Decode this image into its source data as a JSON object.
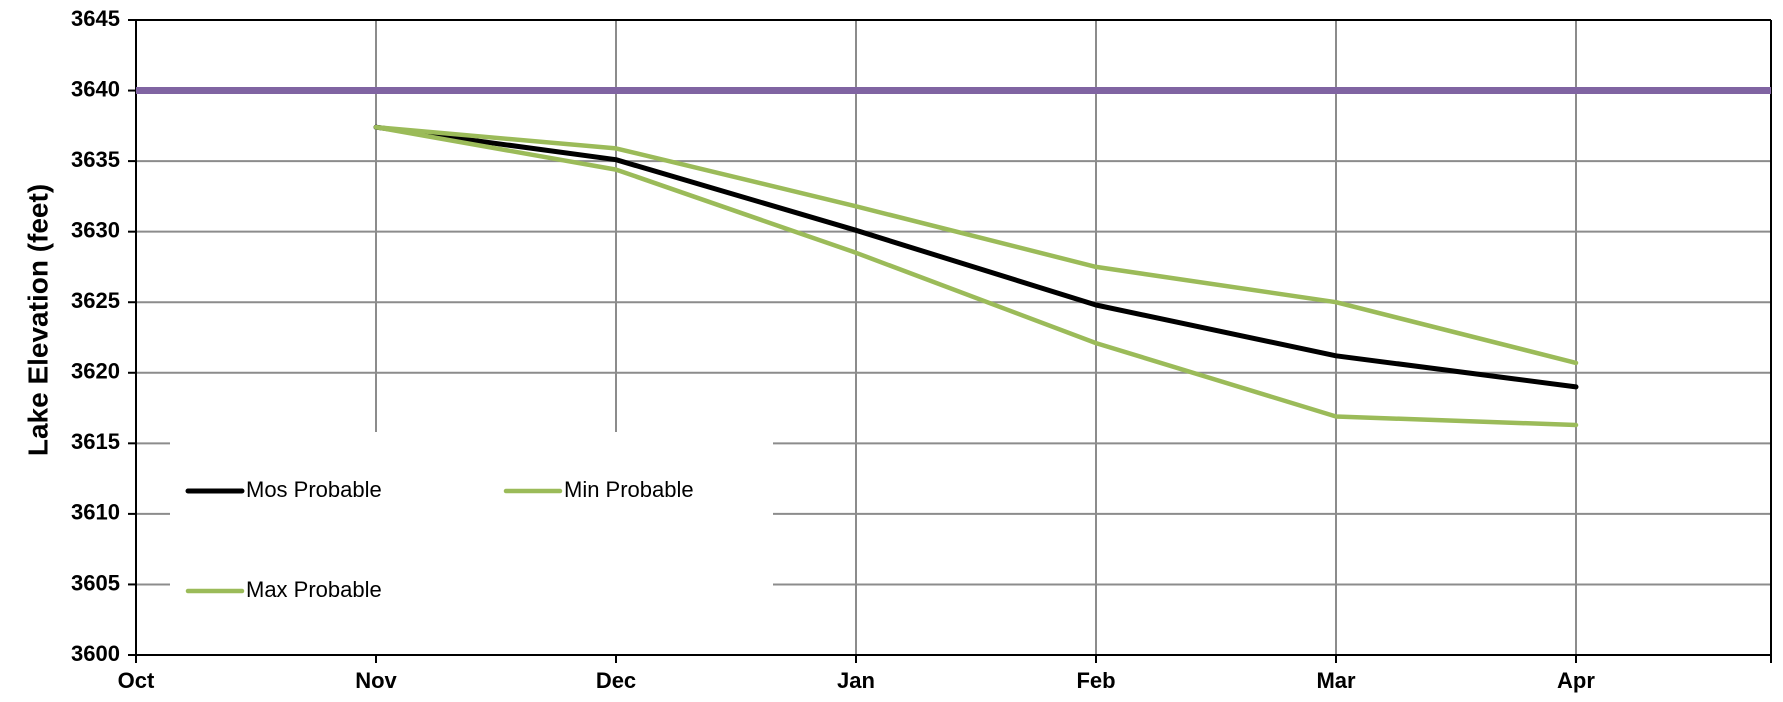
{
  "chart_data": {
    "type": "line",
    "title": "",
    "xlabel": "",
    "ylabel": "Lake Elevation (feet)",
    "x": [
      "Oct",
      "Nov",
      "Dec",
      "Jan",
      "Feb",
      "Mar",
      "Apr"
    ],
    "ylim": [
      3600,
      3645
    ],
    "yticks": [
      "3600",
      "3605",
      "3610",
      "3615",
      "3620",
      "3625",
      "3630",
      "3635",
      "3640",
      "3645"
    ],
    "grid": true,
    "legend_position": "bottom-left",
    "series": [
      {
        "name": "Mos Probable",
        "color": "#000000",
        "values": [
          null,
          3637.4,
          3635.1,
          3630.1,
          3624.8,
          3621.2,
          3619.0
        ]
      },
      {
        "name": "Min Probable",
        "color": "#9bbb59",
        "values": [
          null,
          3637.4,
          3634.4,
          3628.5,
          3622.1,
          3616.9,
          3616.3
        ]
      },
      {
        "name": "Max Probable",
        "color": "#9bbb59",
        "values": [
          null,
          3637.4,
          3635.9,
          3631.8,
          3627.5,
          3625.0,
          3620.7
        ]
      }
    ],
    "reference_line": {
      "value": 3640,
      "color": "#8064a2"
    }
  }
}
